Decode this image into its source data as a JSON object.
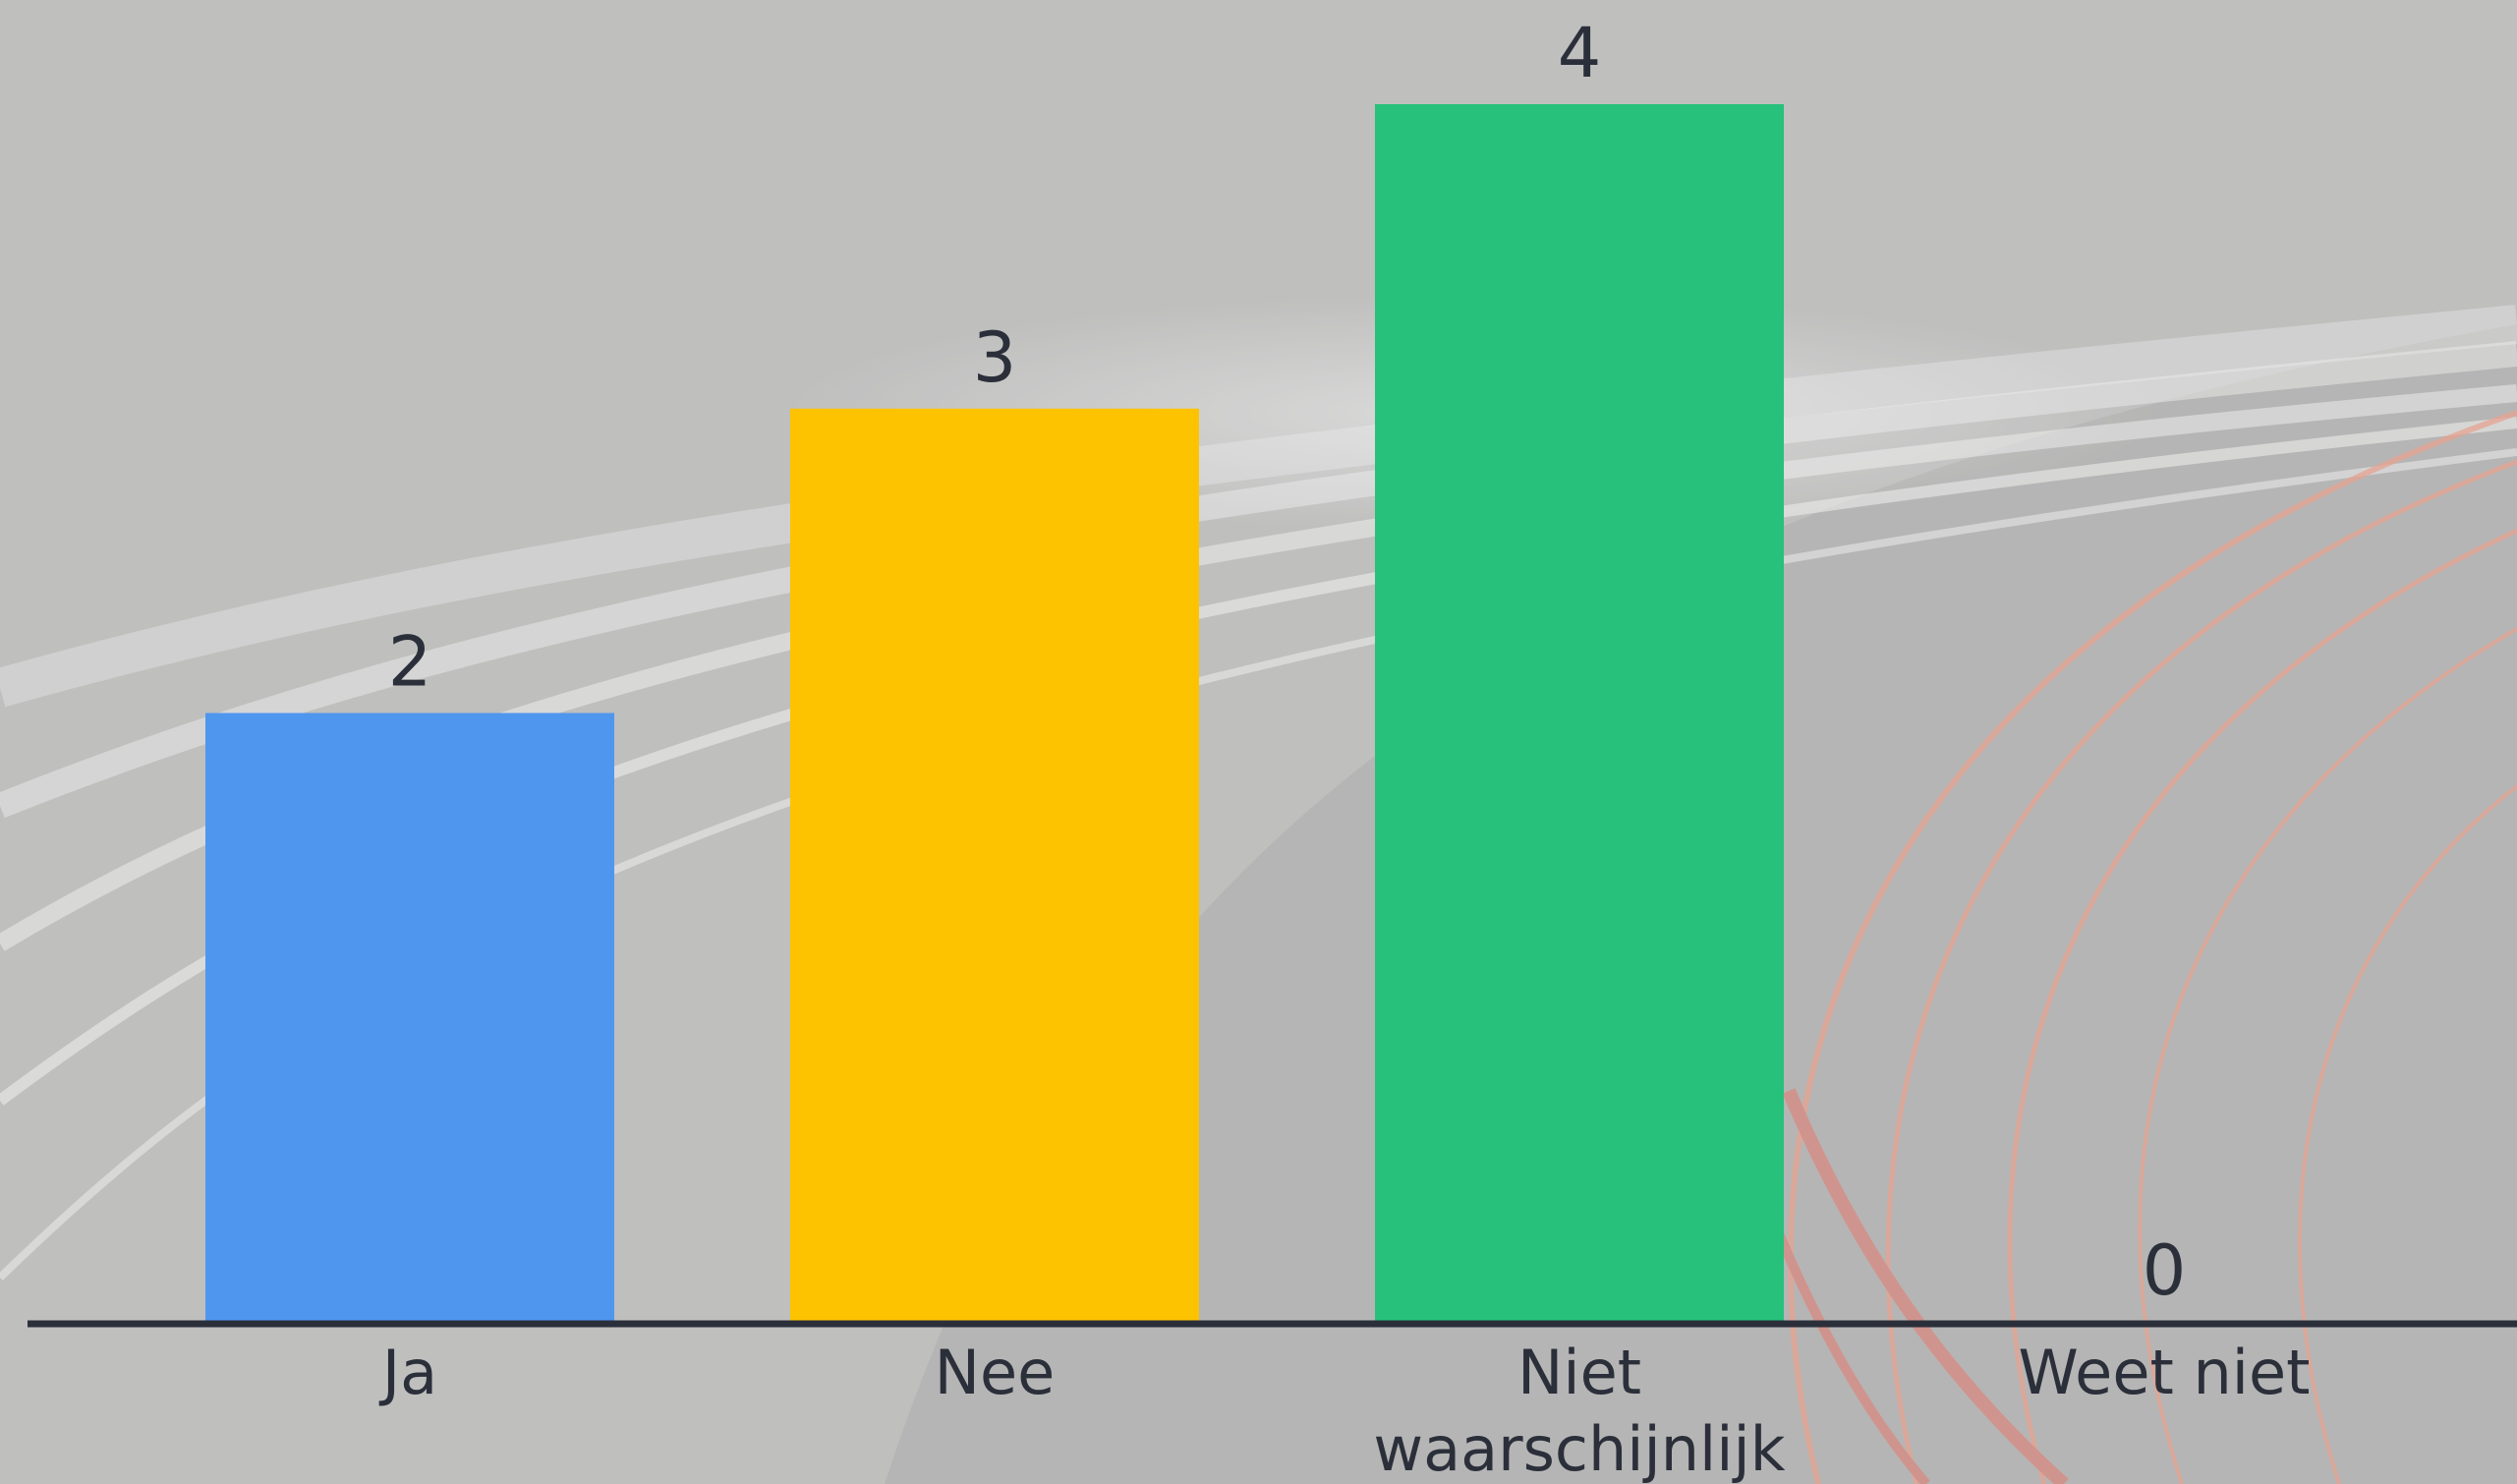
{
  "chart_data": {
    "type": "bar",
    "categories": [
      [
        "Ja"
      ],
      [
        "Nee"
      ],
      [
        "Niet",
        "waarschijnlijk"
      ],
      [
        "Weet niet"
      ]
    ],
    "values": [
      2,
      3,
      4,
      0
    ],
    "colors": [
      "#4f96ee",
      "#fdc300",
      "#27c17c",
      "#8a8a8a"
    ],
    "ylim": [
      0,
      4
    ],
    "grid": false,
    "legend": "none",
    "baseline_color": "#2b2f3a",
    "text_color": "#2b2f3a"
  }
}
